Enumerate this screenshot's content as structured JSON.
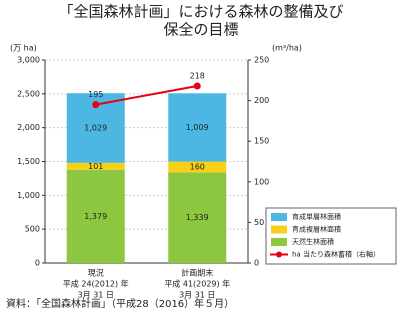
{
  "chart_data": {
    "type": "bar",
    "title": [
      "「全国森林計画」における森林の整備及び",
      "保全の目標"
    ],
    "y_label": "(万 ha)",
    "y2_label": "(m³/ha)",
    "categories": [
      [
        "現況",
        "平成 24(2012) 年",
        "3月 31 日"
      ],
      [
        "計画期末",
        "平成 41(2029) 年",
        "3月 31 日"
      ]
    ],
    "series": [
      {
        "name": "育成単層林面積",
        "color": "#4db7e3",
        "values": [
          1029,
          1009
        ],
        "value_labels": [
          "1,029",
          "1,009"
        ]
      },
      {
        "name": "育成複層林面積",
        "color": "#f7d117",
        "values": [
          101,
          160
        ]
      },
      {
        "name": "天然生林面積",
        "color": "#8dc63f",
        "values": [
          1379,
          1339
        ],
        "value_labels": [
          "1,379",
          "1,339"
        ]
      },
      {
        "name": "ha 当たり森林蓄積（右軸）",
        "type": "line",
        "axis": "y2",
        "color": "#e60012",
        "values": [
          195,
          218
        ]
      }
    ],
    "ylim": [
      0,
      3000
    ],
    "yticks": [
      {
        "value": 0,
        "label": "0"
      },
      {
        "value": 500,
        "label": "500"
      },
      {
        "value": 1000,
        "label": "1,000"
      },
      {
        "value": 1500,
        "label": "1,500"
      },
      {
        "value": 2000,
        "label": "2,000"
      },
      {
        "value": 2500,
        "label": "2,500"
      },
      {
        "value": 3000,
        "label": "3,000"
      }
    ],
    "y2lim": [
      0,
      250
    ],
    "y2ticks": [
      0,
      50,
      100,
      150,
      200,
      250
    ],
    "grid": true,
    "legend": "lower right",
    "source": "資料：「全国森林計画」（平成28（2016）年５月）"
  }
}
